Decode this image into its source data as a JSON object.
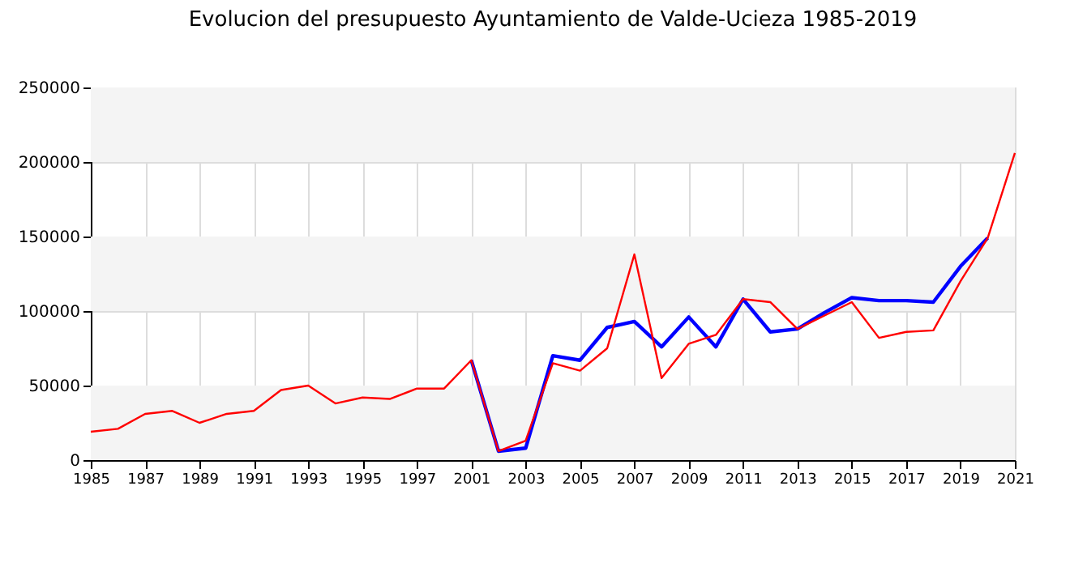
{
  "chart_data": {
    "type": "line",
    "title": "Evolucion del presupuesto Ayuntamiento de Valde-Ucieza 1985-2019",
    "categories": [
      "1985",
      null,
      "1987",
      null,
      "1989",
      null,
      "1991",
      null,
      "1993",
      null,
      "1995",
      null,
      "1997",
      null,
      "2001",
      null,
      "2003",
      null,
      "2005",
      null,
      "2007",
      null,
      "2009",
      null,
      "2011",
      null,
      "2013",
      null,
      "2015",
      null,
      "2017",
      null,
      "2019",
      null,
      "2021"
    ],
    "series": [
      {
        "color": "#0000ff",
        "values": [
          null,
          null,
          null,
          null,
          null,
          null,
          null,
          null,
          null,
          null,
          null,
          null,
          null,
          null,
          67000,
          6000,
          8000,
          70000,
          67000,
          89000,
          93000,
          76000,
          96000,
          76000,
          108000,
          86000,
          88000,
          99000,
          109000,
          107000,
          107000,
          106000,
          130000,
          149000,
          null
        ]
      },
      {
        "color": "#ff0000",
        "values": [
          19000,
          21000,
          31000,
          33000,
          25000,
          31000,
          33000,
          47000,
          50000,
          38000,
          42000,
          41000,
          48000,
          48000,
          67000,
          6000,
          13000,
          65000,
          60000,
          75000,
          138000,
          55000,
          78000,
          84000,
          108000,
          106000,
          88000,
          97000,
          106000,
          82000,
          86000,
          87000,
          120000,
          149000,
          206000
        ]
      }
    ],
    "ylim": [
      0,
      250000
    ],
    "yticks": [
      0,
      50000,
      100000,
      150000,
      200000,
      250000
    ],
    "bands": [
      {
        "axis": "y",
        "from": 0,
        "to": 50000,
        "color": "#f4f4f4"
      },
      {
        "axis": "y",
        "from": 100000,
        "to": 150000,
        "color": "#f4f4f4"
      },
      {
        "axis": "y",
        "from": 200000,
        "to": 250000,
        "color": "#f4f4f4"
      }
    ],
    "grid": true,
    "marker": "none",
    "line_style": "solid"
  }
}
